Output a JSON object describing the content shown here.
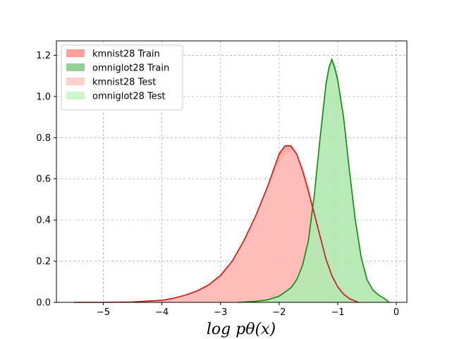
{
  "chart_data": {
    "type": "area",
    "title": "",
    "xlabel": "log pθ(x)",
    "ylabel": "",
    "xlim": [
      -5.8,
      0.18
    ],
    "ylim": [
      0,
      1.27
    ],
    "x_ticks": [
      -5,
      -4,
      -3,
      -2,
      -1,
      0
    ],
    "x_tick_labels": [
      "−5",
      "−4",
      "−3",
      "−2",
      "−1",
      "0"
    ],
    "y_ticks": [
      0.0,
      0.2,
      0.4,
      0.6,
      0.8,
      1.0,
      1.2
    ],
    "y_tick_labels": [
      "0.0",
      "0.2",
      "0.4",
      "0.6",
      "0.8",
      "1.0",
      "1.2"
    ],
    "grid": true,
    "legend_position": "top-left",
    "series": [
      {
        "name": "kmnist28 Train",
        "fill": "#ff9a95",
        "line": "#cc1515",
        "x": [
          -5.5,
          -5.0,
          -4.5,
          -4.0,
          -3.8,
          -3.6,
          -3.4,
          -3.2,
          -3.0,
          -2.8,
          -2.6,
          -2.4,
          -2.2,
          -2.1,
          -2.0,
          -1.9,
          -1.8,
          -1.7,
          -1.6,
          -1.5,
          -1.4,
          -1.3,
          -1.2,
          -1.1,
          -1.0,
          -0.9,
          -0.8,
          -0.7,
          -0.65
        ],
        "y": [
          0.0,
          0.0,
          0.002,
          0.01,
          0.02,
          0.035,
          0.055,
          0.085,
          0.13,
          0.2,
          0.3,
          0.42,
          0.56,
          0.64,
          0.72,
          0.76,
          0.76,
          0.72,
          0.64,
          0.54,
          0.43,
          0.32,
          0.21,
          0.13,
          0.075,
          0.04,
          0.018,
          0.006,
          0.0
        ]
      },
      {
        "name": "omniglot28 Train",
        "fill": "#8fcf8f",
        "line": "#0a8a0a",
        "x": [
          -2.7,
          -2.4,
          -2.2,
          -2.0,
          -1.8,
          -1.7,
          -1.6,
          -1.5,
          -1.4,
          -1.3,
          -1.2,
          -1.15,
          -1.1,
          -1.05,
          -1.0,
          -0.9,
          -0.8,
          -0.7,
          -0.6,
          -0.5,
          -0.4,
          -0.3,
          -0.2,
          -0.12
        ],
        "y": [
          0.0,
          0.005,
          0.012,
          0.03,
          0.07,
          0.11,
          0.18,
          0.3,
          0.52,
          0.8,
          1.06,
          1.14,
          1.18,
          1.14,
          1.08,
          0.9,
          0.64,
          0.4,
          0.22,
          0.11,
          0.06,
          0.035,
          0.018,
          0.0
        ]
      },
      {
        "name": "kmnist28 Test",
        "fill": "#ffc9c4",
        "line": "#ffc9c4",
        "x": [
          -5.0,
          -4.5,
          -4.0,
          -3.6,
          -3.2,
          -2.8,
          -2.4,
          -2.2,
          -2.0,
          -1.9,
          -1.8,
          -1.7,
          -1.6,
          -1.5,
          -1.4,
          -1.3,
          -1.2,
          -1.1,
          -1.0,
          -0.9,
          -0.8,
          -0.7
        ],
        "y": [
          0.0,
          0.002,
          0.01,
          0.035,
          0.09,
          0.2,
          0.42,
          0.56,
          0.68,
          0.72,
          0.74,
          0.72,
          0.66,
          0.58,
          0.47,
          0.36,
          0.24,
          0.15,
          0.085,
          0.04,
          0.015,
          0.0
        ]
      },
      {
        "name": "omniglot28 Test",
        "fill": "#c8f5c5",
        "line": "#c8f5c5",
        "x": [
          -2.7,
          -2.2,
          -2.0,
          -1.8,
          -1.6,
          -1.5,
          -1.4,
          -1.3,
          -1.2,
          -1.15,
          -1.1,
          -1.05,
          -1.0,
          -0.9,
          -0.8,
          -0.7,
          -0.6,
          -0.5,
          -0.4,
          -0.3,
          -0.2,
          -0.12
        ],
        "y": [
          0.0,
          0.012,
          0.03,
          0.07,
          0.18,
          0.3,
          0.5,
          0.78,
          1.04,
          1.12,
          1.16,
          1.12,
          1.06,
          0.88,
          0.63,
          0.4,
          0.22,
          0.11,
          0.06,
          0.035,
          0.018,
          0.0
        ]
      }
    ]
  }
}
